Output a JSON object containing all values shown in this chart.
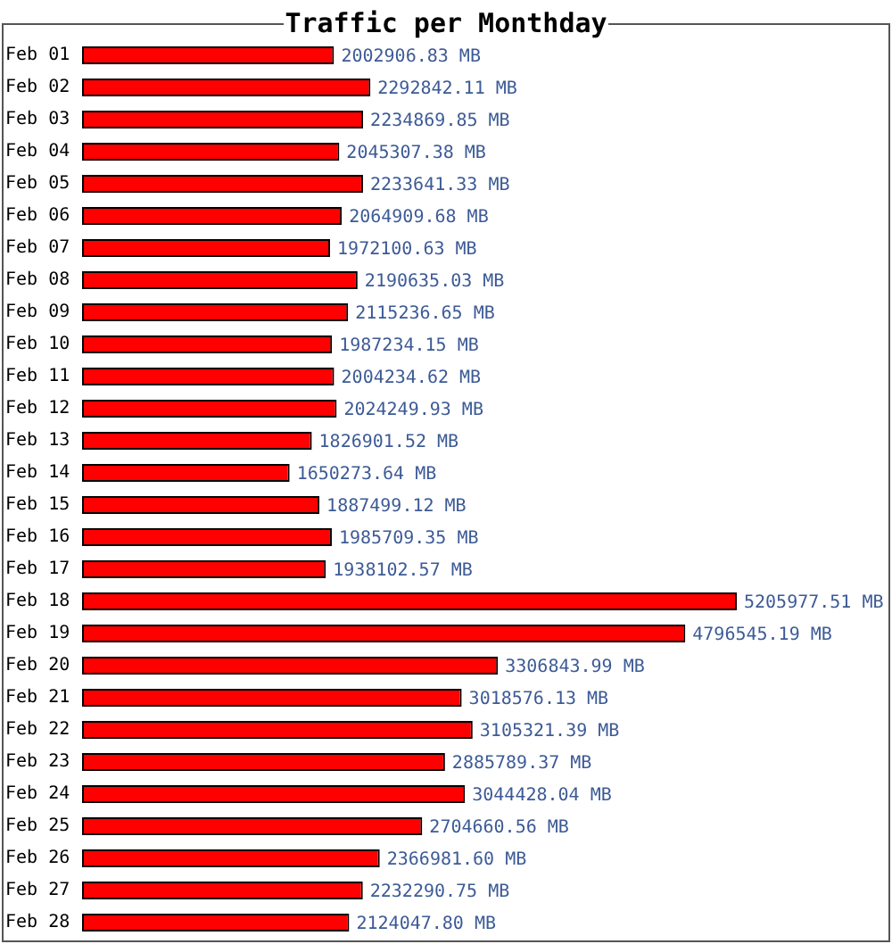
{
  "chart_data": {
    "type": "bar",
    "orientation": "horizontal",
    "title": "Traffic per Monthday",
    "categories": [
      "Feb 01",
      "Feb 02",
      "Feb 03",
      "Feb 04",
      "Feb 05",
      "Feb 06",
      "Feb 07",
      "Feb 08",
      "Feb 09",
      "Feb 10",
      "Feb 11",
      "Feb 12",
      "Feb 13",
      "Feb 14",
      "Feb 15",
      "Feb 16",
      "Feb 17",
      "Feb 18",
      "Feb 19",
      "Feb 20",
      "Feb 21",
      "Feb 22",
      "Feb 23",
      "Feb 24",
      "Feb 25",
      "Feb 26",
      "Feb 27",
      "Feb 28"
    ],
    "values": [
      2002906.83,
      2292842.11,
      2234869.85,
      2045307.38,
      2233641.33,
      2064909.68,
      1972100.63,
      2190635.03,
      2115236.65,
      1987234.15,
      2004234.62,
      2024249.93,
      1826901.52,
      1650273.64,
      1887499.12,
      1985709.35,
      1938102.57,
      5205977.51,
      4796545.19,
      3306843.99,
      3018576.13,
      3105321.39,
      2885789.37,
      3044428.04,
      2704660.56,
      2366981.6,
      2232290.75,
      2124047.8
    ],
    "value_labels": [
      "2002906.83 MB",
      "2292842.11 MB",
      "2234869.85 MB",
      "2045307.38 MB",
      "2233641.33 MB",
      "2064909.68 MB",
      "1972100.63 MB",
      "2190635.03 MB",
      "2115236.65 MB",
      "1987234.15 MB",
      "2004234.62 MB",
      "2024249.93 MB",
      "1826901.52 MB",
      "1650273.64 MB",
      "1887499.12 MB",
      "1985709.35 MB",
      "1938102.57 MB",
      "5205977.51 MB",
      "4796545.19 MB",
      "3306843.99 MB",
      "3018576.13 MB",
      "3105321.39 MB",
      "2885789.37 MB",
      "3044428.04 MB",
      "2704660.56 MB",
      "2366981.60 MB",
      "2232290.75 MB",
      "2124047.80 MB"
    ],
    "color": "#ff0000",
    "tick_labels": "y"
  }
}
